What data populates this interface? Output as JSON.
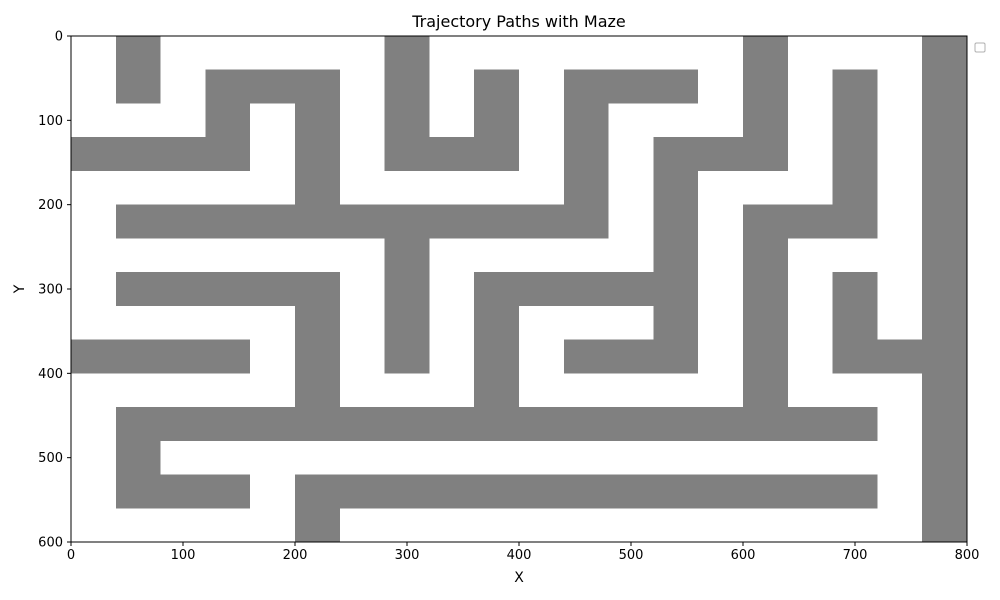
{
  "chart_data": {
    "type": "heatmap",
    "title": "Trajectory Paths with Maze",
    "xlabel": "X",
    "ylabel": "Y",
    "xlim": [
      0,
      800
    ],
    "ylim": [
      600,
      0
    ],
    "y_inverted": true,
    "x_ticks": [
      "0",
      "100",
      "200",
      "300",
      "400",
      "500",
      "600",
      "700",
      "800"
    ],
    "y_ticks": [
      "0",
      "100",
      "200",
      "300",
      "400",
      "500",
      "600"
    ],
    "grid": false,
    "legend": {
      "placement": "top-right",
      "entries": []
    },
    "wall_color": "#808080",
    "background_color": "#ffffff",
    "walls": [
      {
        "x0": 40,
        "x1": 80,
        "y0": 0,
        "y1": 80
      },
      {
        "x0": 120,
        "x1": 240,
        "y0": 40,
        "y1": 80
      },
      {
        "x0": 120,
        "x1": 160,
        "y0": 40,
        "y1": 160
      },
      {
        "x0": 0,
        "x1": 160,
        "y0": 120,
        "y1": 160
      },
      {
        "x0": 200,
        "x1": 240,
        "y0": 40,
        "y1": 240
      },
      {
        "x0": 40,
        "x1": 480,
        "y0": 200,
        "y1": 240
      },
      {
        "x0": 280,
        "x1": 320,
        "y0": 0,
        "y1": 160
      },
      {
        "x0": 280,
        "x1": 400,
        "y0": 120,
        "y1": 160
      },
      {
        "x0": 360,
        "x1": 400,
        "y0": 40,
        "y1": 160
      },
      {
        "x0": 440,
        "x1": 480,
        "y0": 40,
        "y1": 240
      },
      {
        "x0": 440,
        "x1": 560,
        "y0": 40,
        "y1": 80
      },
      {
        "x0": 280,
        "x1": 320,
        "y0": 200,
        "y1": 400
      },
      {
        "x0": 520,
        "x1": 640,
        "y0": 120,
        "y1": 160
      },
      {
        "x0": 600,
        "x1": 640,
        "y0": 0,
        "y1": 160
      },
      {
        "x0": 520,
        "x1": 560,
        "y0": 120,
        "y1": 400
      },
      {
        "x0": 680,
        "x1": 720,
        "y0": 40,
        "y1": 240
      },
      {
        "x0": 600,
        "x1": 720,
        "y0": 200,
        "y1": 240
      },
      {
        "x0": 600,
        "x1": 640,
        "y0": 200,
        "y1": 480
      },
      {
        "x0": 40,
        "x1": 240,
        "y0": 280,
        "y1": 320
      },
      {
        "x0": 200,
        "x1": 240,
        "y0": 280,
        "y1": 480
      },
      {
        "x0": 0,
        "x1": 160,
        "y0": 360,
        "y1": 400
      },
      {
        "x0": 360,
        "x1": 560,
        "y0": 280,
        "y1": 320
      },
      {
        "x0": 360,
        "x1": 400,
        "y0": 280,
        "y1": 480
      },
      {
        "x0": 440,
        "x1": 560,
        "y0": 360,
        "y1": 400
      },
      {
        "x0": 680,
        "x1": 720,
        "y0": 280,
        "y1": 400
      },
      {
        "x0": 680,
        "x1": 760,
        "y0": 360,
        "y1": 400
      },
      {
        "x0": 760,
        "x1": 800,
        "y0": 0,
        "y1": 600
      },
      {
        "x0": 40,
        "x1": 720,
        "y0": 440,
        "y1": 480
      },
      {
        "x0": 40,
        "x1": 80,
        "y0": 440,
        "y1": 560
      },
      {
        "x0": 40,
        "x1": 160,
        "y0": 520,
        "y1": 560
      },
      {
        "x0": 200,
        "x1": 720,
        "y0": 520,
        "y1": 560
      },
      {
        "x0": 200,
        "x1": 240,
        "y0": 520,
        "y1": 600
      }
    ]
  }
}
